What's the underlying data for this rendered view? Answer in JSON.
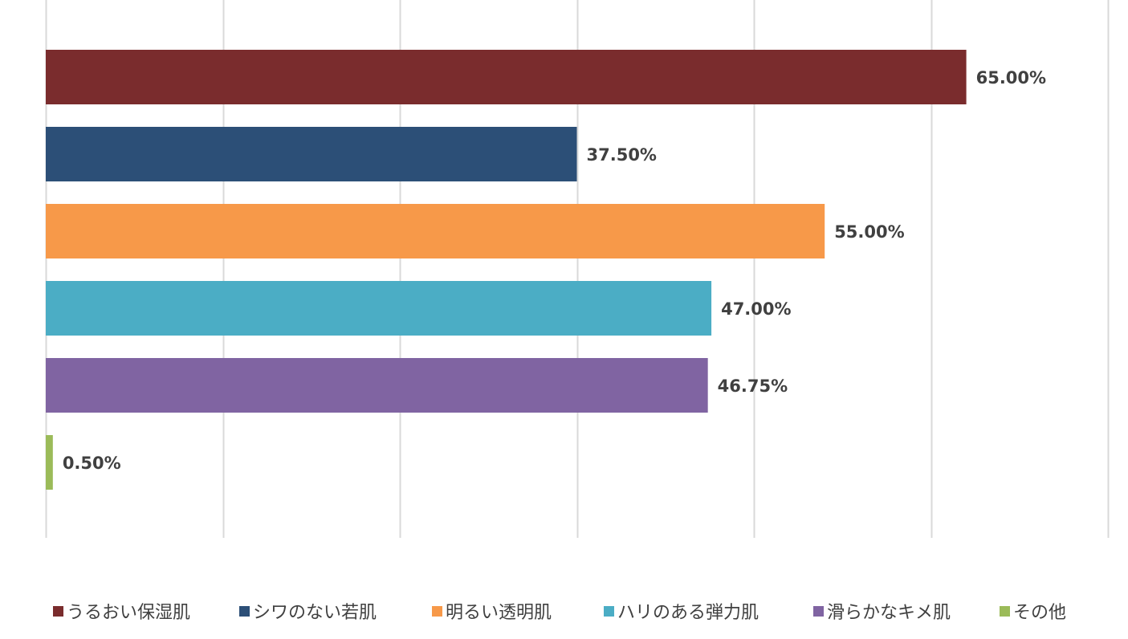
{
  "chart_data": {
    "type": "bar",
    "orientation": "horizontal",
    "categories": [
      "うるおい保湿肌",
      "シワのない若肌",
      "明るい透明肌",
      "ハリのある弾力肌",
      "滑らかなキメ肌",
      "その他"
    ],
    "values": [
      65.0,
      37.5,
      55.0,
      47.0,
      46.75,
      0.5
    ],
    "value_labels": [
      "65.00%",
      "37.50%",
      "55.00%",
      "47.00%",
      "46.75%",
      "0.50%"
    ],
    "colors": [
      "#7a2c2d",
      "#2c4f77",
      "#f79949",
      "#4badc5",
      "#8064a2",
      "#9bbb59"
    ],
    "xlim": [
      0,
      75
    ],
    "x_gridlines": [
      0,
      12.5,
      25,
      37.5,
      50,
      62.5,
      75
    ],
    "grid": true,
    "legend_position": "bottom",
    "title": "",
    "xlabel": "",
    "ylabel": ""
  }
}
